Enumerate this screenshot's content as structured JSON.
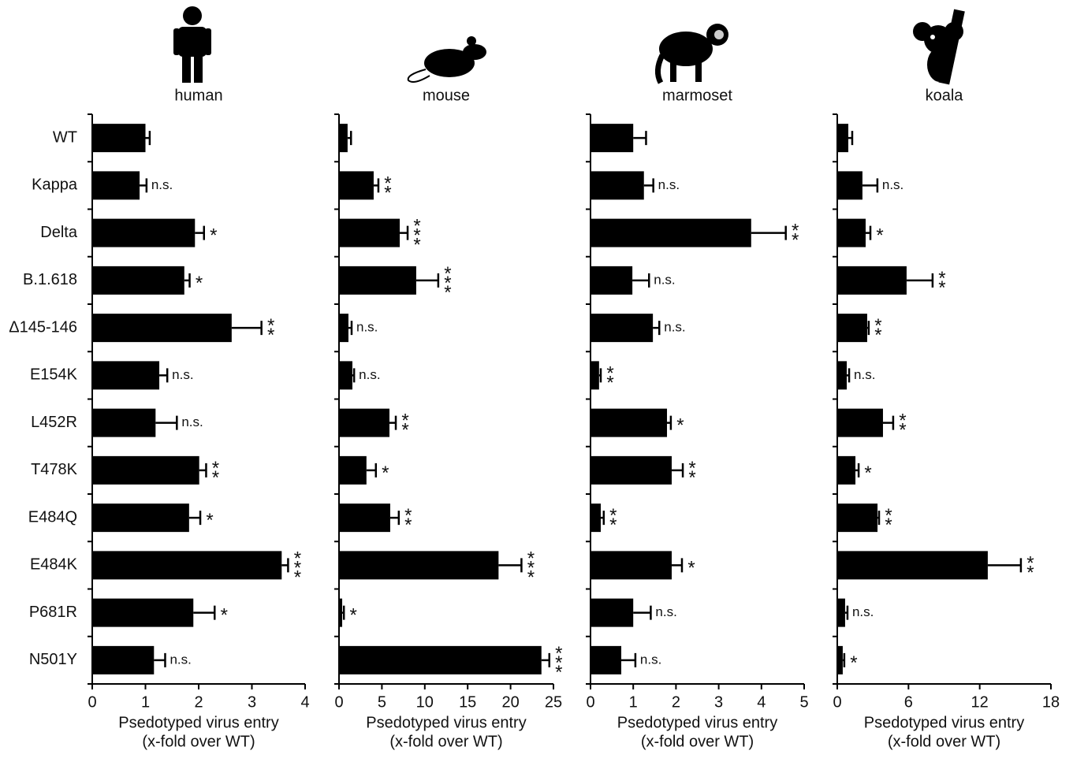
{
  "chart_data": [
    {
      "type": "hbar",
      "title": "human",
      "categories": [
        "WT",
        "Kappa",
        "Delta",
        "B.1.618",
        "Δ145-146",
        "E154K",
        "L452R",
        "T478K",
        "E484Q",
        "E484K",
        "P681R",
        "N501Y"
      ],
      "values": [
        1.0,
        0.89,
        1.93,
        1.73,
        2.62,
        1.26,
        1.19,
        2.01,
        1.82,
        3.56,
        1.9,
        1.16
      ],
      "errors": [
        0.08,
        0.13,
        0.17,
        0.1,
        0.56,
        0.15,
        0.4,
        0.13,
        0.21,
        0.12,
        0.4,
        0.21
      ],
      "annotations": [
        null,
        "n.s.",
        "*",
        "*",
        "**",
        "n.s.",
        "n.s.",
        "**",
        "*",
        "***",
        "*",
        "n.s."
      ],
      "xlim": [
        0,
        4
      ],
      "xticks": [
        0,
        1,
        2,
        3,
        4
      ],
      "xlabel": [
        "Psedotyped virus entry",
        "(x-fold over WT)"
      ],
      "color": "#000000"
    },
    {
      "type": "hbar",
      "title": "mouse",
      "values": [
        1.0,
        4.04,
        7.08,
        9.0,
        1.1,
        1.56,
        5.88,
        3.2,
        5.97,
        18.6,
        0.37,
        23.6
      ],
      "errors": [
        0.4,
        0.55,
        0.92,
        2.57,
        0.37,
        0.2,
        0.74,
        1.1,
        1.0,
        2.67,
        0.2,
        0.92
      ],
      "annotations": [
        null,
        "**",
        "***",
        "***",
        "n.s.",
        "n.s.",
        "**",
        "*",
        "**",
        "***",
        "*",
        "***"
      ],
      "xlim": [
        0,
        25
      ],
      "xticks": [
        0,
        5,
        10,
        15,
        20,
        25
      ],
      "xlabel": [
        "Psedotyped virus entry",
        "(x-fold over WT)"
      ],
      "color": "#000000"
    },
    {
      "type": "hbar",
      "title": "marmoset",
      "values": [
        1.0,
        1.25,
        3.76,
        0.98,
        1.46,
        0.2,
        1.79,
        1.9,
        0.24,
        1.9,
        1.0,
        0.72
      ],
      "errors": [
        0.3,
        0.22,
        0.81,
        0.39,
        0.15,
        0.04,
        0.09,
        0.26,
        0.07,
        0.24,
        0.41,
        0.33
      ],
      "annotations": [
        null,
        "n.s.",
        "**",
        "n.s.",
        "n.s.",
        "**",
        "*",
        "**",
        "**",
        "*",
        "n.s.",
        "n.s."
      ],
      "xlim": [
        0,
        5
      ],
      "xticks": [
        0,
        1,
        2,
        3,
        4,
        5
      ],
      "xlabel": [
        "Psedotyped virus entry",
        "(x-fold over WT)"
      ],
      "color": "#000000"
    },
    {
      "type": "hbar",
      "title": "koala",
      "values": [
        0.93,
        2.12,
        2.39,
        5.84,
        2.52,
        0.8,
        3.85,
        1.53,
        3.39,
        12.68,
        0.66,
        0.46
      ],
      "errors": [
        0.33,
        1.26,
        0.4,
        2.19,
        0.13,
        0.2,
        0.86,
        0.27,
        0.13,
        2.79,
        0.2,
        0.13
      ],
      "annotations": [
        null,
        "n.s.",
        "*",
        "**",
        "**",
        "n.s.",
        "**",
        "*",
        "**",
        "**",
        "n.s.",
        "*"
      ],
      "xlim": [
        0,
        18
      ],
      "xticks": [
        0,
        6,
        12,
        18
      ],
      "xlabel": [
        "Psedotyped virus entry",
        "(x-fold over WT)"
      ],
      "color": "#000000"
    }
  ]
}
